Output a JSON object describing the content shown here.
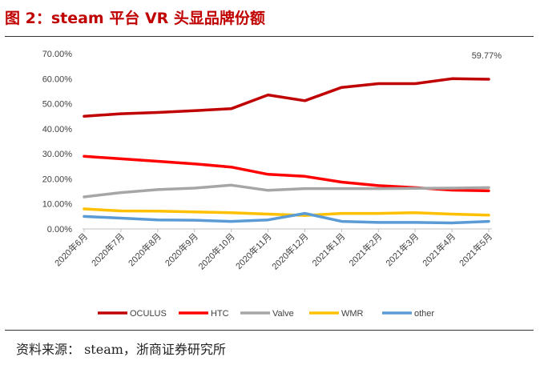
{
  "figure": {
    "title": "图 2：steam 平台 VR 头显品牌份额",
    "source": "资料来源： steam，浙商证券研究所"
  },
  "chart_data": {
    "type": "line",
    "x": [
      "2020年6月",
      "2020年7月",
      "2020年8月",
      "2020年9月",
      "2020年10月",
      "2020年11月",
      "2020年12月",
      "2021年1月",
      "2021年2月",
      "2021年3月",
      "2021年4月",
      "2021年5月"
    ],
    "y_ticks": [
      "0.00%",
      "10.00%",
      "20.00%",
      "30.00%",
      "40.00%",
      "50.00%",
      "60.00%",
      "70.00%"
    ],
    "ylim": [
      0,
      70
    ],
    "grid": false,
    "legend_position": "bottom",
    "series": [
      {
        "name": "OCULUS",
        "color": "#c00000",
        "values": [
          45.0,
          46.0,
          46.5,
          47.2,
          48.0,
          53.5,
          51.2,
          56.5,
          58.0,
          58.0,
          60.0,
          59.77
        ]
      },
      {
        "name": "HTC",
        "color": "#ff0000",
        "values": [
          29.0,
          28.0,
          27.0,
          26.0,
          24.7,
          21.8,
          21.0,
          18.7,
          17.3,
          16.5,
          15.5,
          15.2
        ]
      },
      {
        "name": "Valve",
        "color": "#a6a6a6",
        "values": [
          12.8,
          14.5,
          15.7,
          16.3,
          17.5,
          15.4,
          16.1,
          16.1,
          16.1,
          16.2,
          16.3,
          16.5
        ]
      },
      {
        "name": "WMR",
        "color": "#ffc000",
        "values": [
          8.0,
          7.2,
          7.1,
          6.8,
          6.5,
          5.9,
          5.4,
          6.2,
          6.2,
          6.5,
          5.9,
          5.5
        ]
      },
      {
        "name": "other",
        "color": "#5b9bd5",
        "values": [
          5.0,
          4.3,
          3.6,
          3.5,
          3.0,
          3.6,
          6.2,
          3.0,
          2.6,
          2.6,
          2.4,
          3.0
        ]
      }
    ],
    "annotations": [
      {
        "series": "OCULUS",
        "point": 11,
        "text": "59.77%"
      }
    ]
  }
}
